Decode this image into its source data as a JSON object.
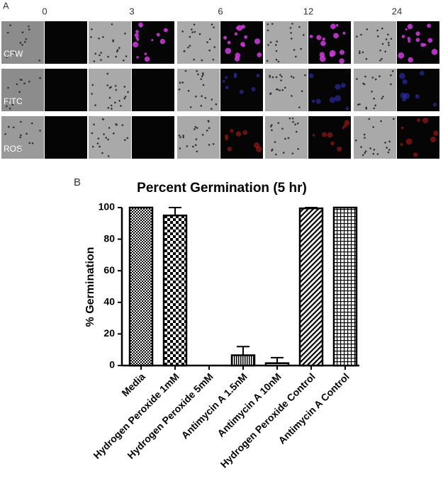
{
  "panel_a": {
    "label": "A",
    "timepoints": [
      "0",
      "3",
      "6",
      "12",
      "24"
    ],
    "rows": [
      "CFW",
      "FITC",
      "ROS"
    ]
  },
  "panel_b_label": "B",
  "chart_data": {
    "type": "bar",
    "title": "Percent Germination (5 hr)",
    "y_label": "% Germination",
    "categories": [
      "Media",
      "Hydrogen Peroxide 1mM",
      "Hydrogen Peroxide 5mM",
      "Antimycin A 1.5nM",
      "Antimycin A 10nM",
      "Hydrogen Peroxide Control",
      "Antimycin A Control"
    ],
    "values": [
      100,
      95,
      0,
      6.5,
      1.5,
      99.5,
      100
    ],
    "errors": [
      0,
      5,
      0,
      5.5,
      3.5,
      0.5,
      0
    ],
    "ylim": [
      0,
      100
    ],
    "yticks": [
      0,
      20,
      40,
      60,
      80,
      100
    ],
    "color": "#000000"
  }
}
